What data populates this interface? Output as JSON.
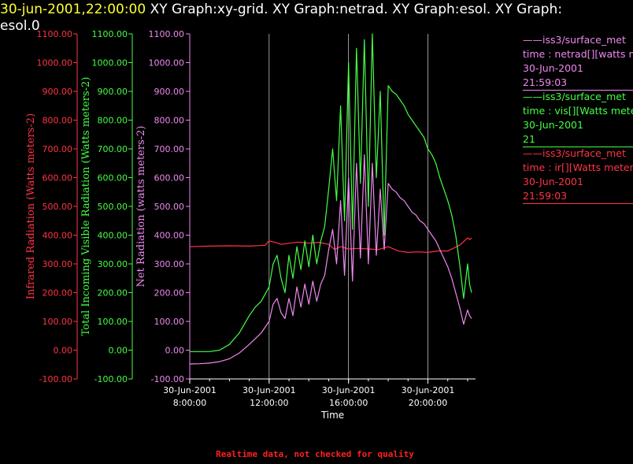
{
  "title": {
    "timestamp": "30-jun-2001,22:00:00",
    "text": " XY Graph:xy-grid.  XY Graph:netrad.  XY Graph:esol.  XY Graph:",
    "line2": "esol.0"
  },
  "footer_note": "Realtime data, not checked for quality",
  "colors": {
    "ir": "#ff3344",
    "vis": "#44ff44",
    "net": "#ee88ee",
    "grid": "#ffffff",
    "axis_x": "#ffffff"
  },
  "legend": [
    {
      "name": "——iss3/surface_met",
      "line1": "time : netrad[][watts meters-2]",
      "line2": "30-Jun-2001",
      "line3": "21:59:03",
      "color": "#ee88ee"
    },
    {
      "name": "——iss3/surface_met",
      "line1": "time : vis[][Watts meters-2]",
      "line2": "30-Jun-2001",
      "line3": "21",
      "color": "#44ff44"
    },
    {
      "name": "——iss3/surface_met",
      "line1": "time : ir[][Watts meters-2]",
      "line2": "30-Jun-2001",
      "line3": "21:59:03",
      "color": "#ff3344"
    }
  ],
  "chart_data": {
    "type": "line",
    "xlabel": "Time",
    "x_ticks": [
      {
        "date": "30-Jun-2001",
        "time": "8:00:00",
        "hour": 8
      },
      {
        "date": "30-Jun-2001",
        "time": "12:00:00",
        "hour": 12
      },
      {
        "date": "30-Jun-2001",
        "time": "16:00:00",
        "hour": 16
      },
      {
        "date": "30-Jun-2001",
        "time": "20:00:00",
        "hour": 20
      }
    ],
    "xlim": [
      8,
      22.4
    ],
    "ylim": [
      -100,
      1100
    ],
    "y_ticks": [
      "1100.00",
      "1000.00",
      "900.00",
      "800.00",
      "700.00",
      "600.00",
      "500.00",
      "400.00",
      "300.00",
      "200.00",
      "100.00",
      "0.00",
      "-100.00"
    ],
    "y_axes": [
      {
        "label": "Infrared Radiation (Watts meters-2)",
        "color": "#ff3344"
      },
      {
        "label": "Total Incoming Visible Radiation (Watts meters-2)",
        "color": "#44ff44"
      },
      {
        "label": "Net Radiation (watts meters-2)",
        "color": "#ee88ee"
      }
    ],
    "grid": "vertical",
    "series": [
      {
        "name": "ir",
        "color": "#ff3344",
        "x": [
          8,
          9,
          10,
          11,
          11.8,
          12,
          12.3,
          12.6,
          13,
          13.5,
          14,
          14.5,
          15,
          15.3,
          15.6,
          16,
          16.5,
          17,
          17.5,
          18,
          18.5,
          19,
          19.5,
          20,
          20.5,
          21,
          21.3,
          21.6,
          22,
          22.1,
          22.2
        ],
        "y": [
          360,
          362,
          363,
          362,
          365,
          380,
          375,
          368,
          372,
          376,
          372,
          375,
          368,
          350,
          360,
          352,
          354,
          352,
          350,
          360,
          345,
          340,
          342,
          340,
          345,
          345,
          355,
          365,
          390,
          385,
          390
        ]
      },
      {
        "name": "vis",
        "color": "#44ff44",
        "x": [
          8,
          8.5,
          9,
          9.5,
          10,
          10.5,
          11,
          11.3,
          11.6,
          12,
          12.2,
          12.4,
          12.6,
          12.8,
          13,
          13.2,
          13.4,
          13.6,
          13.8,
          14,
          14.2,
          14.4,
          14.6,
          14.8,
          15,
          15.2,
          15.4,
          15.6,
          15.8,
          16,
          16.2,
          16.4,
          16.6,
          16.8,
          17,
          17.2,
          17.4,
          17.6,
          17.8,
          18,
          18.2,
          18.4,
          18.6,
          18.8,
          19,
          19.2,
          19.4,
          19.6,
          19.8,
          20,
          20.2,
          20.4,
          20.6,
          20.8,
          21,
          21.2,
          21.4,
          21.6,
          21.8,
          22,
          22.1,
          22.2
        ],
        "y": [
          -5,
          -5,
          -5,
          0,
          20,
          60,
          120,
          150,
          170,
          220,
          300,
          330,
          250,
          200,
          330,
          250,
          360,
          280,
          380,
          290,
          400,
          300,
          380,
          430,
          560,
          700,
          520,
          850,
          450,
          1000,
          420,
          1050,
          580,
          1080,
          500,
          1100,
          600,
          900,
          400,
          920,
          900,
          890,
          870,
          850,
          820,
          800,
          780,
          760,
          740,
          700,
          680,
          650,
          600,
          560,
          520,
          470,
          400,
          300,
          180,
          300,
          230,
          200
        ]
      },
      {
        "name": "net",
        "color": "#ee88ee",
        "x": [
          8,
          8.5,
          9,
          9.5,
          10,
          10.5,
          11,
          11.3,
          11.6,
          12,
          12.2,
          12.4,
          12.6,
          12.8,
          13,
          13.2,
          13.4,
          13.6,
          13.8,
          14,
          14.2,
          14.4,
          14.6,
          14.8,
          15,
          15.2,
          15.4,
          15.6,
          15.8,
          16,
          16.2,
          16.4,
          16.6,
          16.8,
          17,
          17.2,
          17.4,
          17.6,
          17.8,
          18,
          18.2,
          18.4,
          18.6,
          18.8,
          19,
          19.2,
          19.4,
          19.6,
          19.8,
          20,
          20.2,
          20.4,
          20.6,
          20.8,
          21,
          21.2,
          21.4,
          21.6,
          21.8,
          22,
          22.1,
          22.2
        ],
        "y": [
          -48,
          -47,
          -45,
          -40,
          -30,
          -10,
          20,
          40,
          60,
          100,
          160,
          180,
          130,
          110,
          180,
          120,
          220,
          150,
          230,
          160,
          240,
          170,
          230,
          260,
          350,
          420,
          300,
          520,
          260,
          600,
          240,
          650,
          320,
          680,
          300,
          650,
          330,
          560,
          350,
          580,
          560,
          550,
          530,
          520,
          500,
          480,
          470,
          450,
          440,
          420,
          400,
          380,
          350,
          320,
          290,
          250,
          200,
          150,
          90,
          140,
          120,
          110
        ]
      }
    ]
  }
}
